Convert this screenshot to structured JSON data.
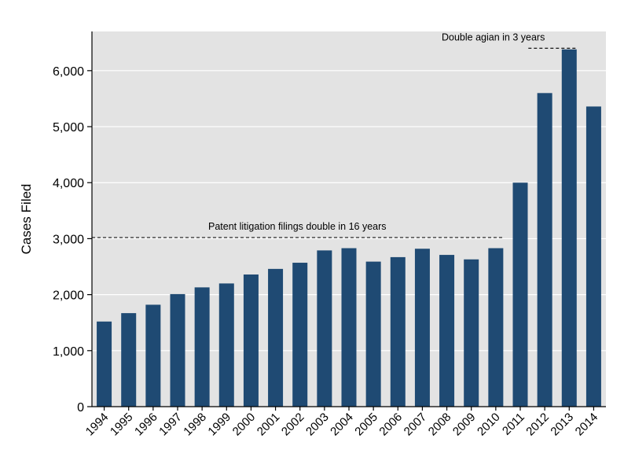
{
  "chart_data": {
    "type": "bar",
    "title": "",
    "xlabel": "",
    "ylabel": "Cases Filed",
    "ylim": [
      0,
      6700
    ],
    "yticks": [
      0,
      1000,
      2000,
      3000,
      4000,
      5000,
      6000
    ],
    "ytick_labels": [
      "0",
      "1,000",
      "2,000",
      "3,000",
      "4,000",
      "5,000",
      "6,000"
    ],
    "categories": [
      "1994",
      "1995",
      "1996",
      "1997",
      "1998",
      "1999",
      "2000",
      "2001",
      "2002",
      "2003",
      "2004",
      "2005",
      "2006",
      "2007",
      "2008",
      "2009",
      "2010",
      "2011",
      "2012",
      "2013",
      "2014"
    ],
    "values": [
      1520,
      1670,
      1820,
      2010,
      2130,
      2200,
      2360,
      2460,
      2570,
      2790,
      2830,
      2590,
      2670,
      2820,
      2710,
      2630,
      2830,
      4000,
      5600,
      6380,
      5360
    ],
    "grid": true,
    "colors": {
      "bar": "#1f4a73",
      "plot_bg": "#e3e3e3",
      "grid": "#ffffff"
    },
    "annotations": [
      {
        "text": "Patent litigation filings double in 16 years",
        "y": 3020,
        "from": "1994",
        "to": "2010"
      },
      {
        "text": "Double agian in 3 years",
        "y": 6400,
        "from": "2013",
        "to": "2013"
      }
    ]
  }
}
